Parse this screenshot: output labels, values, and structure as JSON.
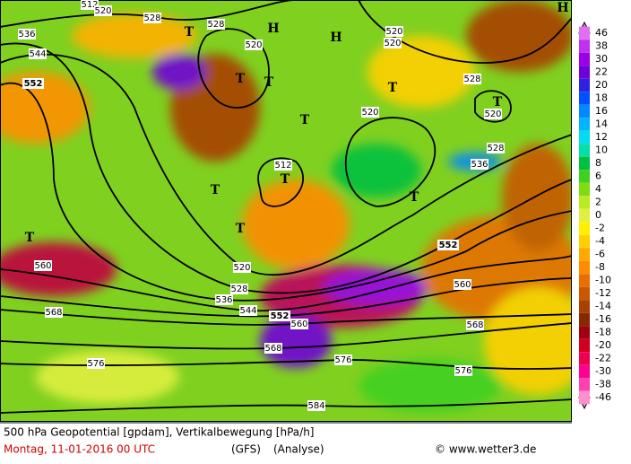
{
  "map": {
    "pressure_centers": [
      "H",
      "H",
      "H",
      "T",
      "T",
      "T",
      "T",
      "T",
      "T",
      "T",
      "T",
      "T",
      "T",
      "T"
    ],
    "contour_labels": [
      512,
      520,
      528,
      536,
      544,
      552,
      520,
      528,
      520,
      520,
      528,
      520,
      528,
      536,
      512,
      520,
      528,
      536,
      544,
      552,
      560,
      568,
      576,
      584,
      576,
      568,
      560,
      552,
      560,
      568,
      576,
      520
    ],
    "colorbar": [
      {
        "value": 46,
        "color": "#e070f0"
      },
      {
        "value": 38,
        "color": "#c030f0"
      },
      {
        "value": 30,
        "color": "#9a00e8"
      },
      {
        "value": 22,
        "color": "#7000d8"
      },
      {
        "value": 20,
        "color": "#3020e0"
      },
      {
        "value": 18,
        "color": "#0050ff"
      },
      {
        "value": 16,
        "color": "#0088ff"
      },
      {
        "value": 14,
        "color": "#00b4ff"
      },
      {
        "value": 12,
        "color": "#00dcf0"
      },
      {
        "value": 10,
        "color": "#00e0a8"
      },
      {
        "value": 8,
        "color": "#00c040"
      },
      {
        "value": 6,
        "color": "#40d020"
      },
      {
        "value": 4,
        "color": "#80dc10"
      },
      {
        "value": 2,
        "color": "#b8ec20"
      },
      {
        "value": 0,
        "color": "#e0f040"
      },
      {
        "value": -2,
        "color": "#fff000"
      },
      {
        "value": -4,
        "color": "#ffd000"
      },
      {
        "value": -6,
        "color": "#ffa800"
      },
      {
        "value": -8,
        "color": "#ff8c00"
      },
      {
        "value": -10,
        "color": "#e87000"
      },
      {
        "value": -12,
        "color": "#c85800"
      },
      {
        "value": -14,
        "color": "#a84000"
      },
      {
        "value": -16,
        "color": "#882800"
      },
      {
        "value": -18,
        "color": "#a00010"
      },
      {
        "value": -20,
        "color": "#d00020"
      },
      {
        "value": -22,
        "color": "#f00050"
      },
      {
        "value": -30,
        "color": "#ff0090"
      },
      {
        "value": -38,
        "color": "#ff40b0"
      },
      {
        "value": -46,
        "color": "#ff90d0"
      }
    ]
  },
  "footer": {
    "title": "500 hPa Geopotential [gpdam], Vertikalbewegung [hPa/h]",
    "date": "Montag, 11-01-2016  00 UTC",
    "model": "(GFS)",
    "run": "(Analyse)",
    "credit": "© www.wetter3.de"
  }
}
